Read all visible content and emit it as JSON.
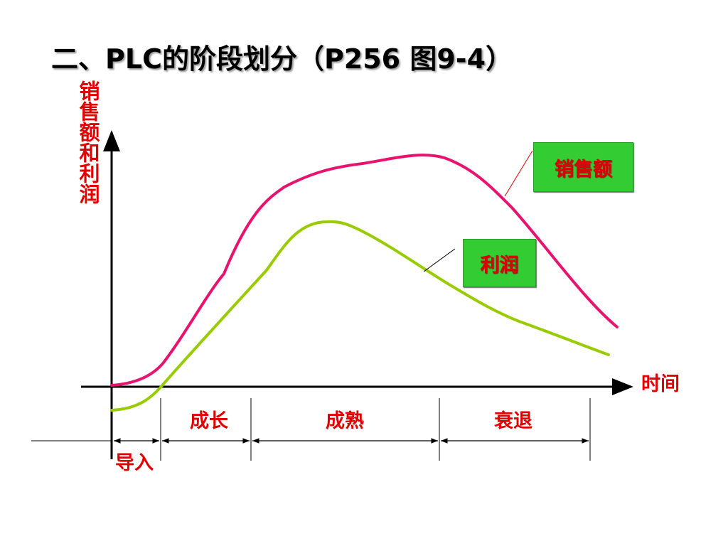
{
  "title": "二、PLC的阶段划分（P256 图9-4）",
  "y_axis_label": "销售额和利润",
  "x_axis_label": "时间",
  "legend": {
    "sales": "销售额",
    "profit": "利润"
  },
  "stages": [
    "导入",
    "成长",
    "成熟",
    "衰退"
  ],
  "colors": {
    "sales_curve": "#e8136e",
    "profit_curve": "#99cc00",
    "label_text": "#e00000",
    "legend_background": "#33cc33"
  }
}
